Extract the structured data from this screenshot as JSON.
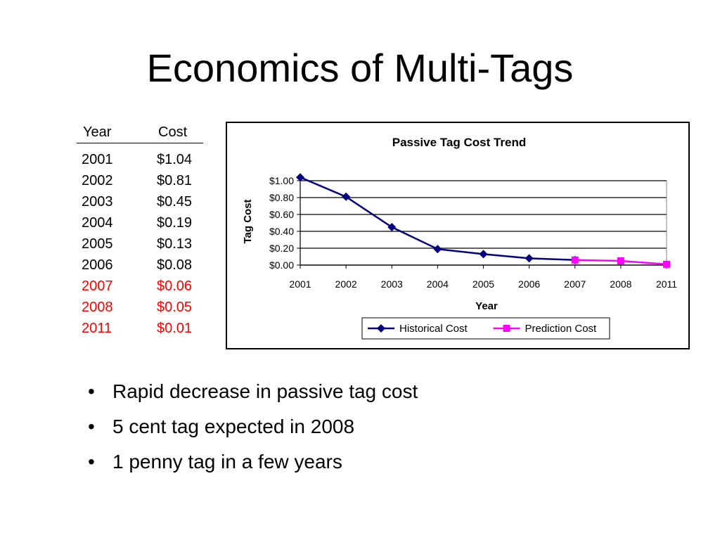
{
  "slide": {
    "title": "Economics of Multi-Tags",
    "bullets": [
      "Rapid decrease in passive tag cost",
      "5 cent tag expected in 2008",
      "1 penny tag in a few years"
    ],
    "bullet_symbol": "•"
  },
  "table": {
    "headers": [
      "Year",
      "Cost"
    ],
    "rows": [
      {
        "year": "2001",
        "cost": "$1.04",
        "color": "#000000"
      },
      {
        "year": "2002",
        "cost": "$0.81",
        "color": "#000000"
      },
      {
        "year": "2003",
        "cost": "$0.45",
        "color": "#000000"
      },
      {
        "year": "2004",
        "cost": "$0.19",
        "color": "#000000"
      },
      {
        "year": "2005",
        "cost": "$0.13",
        "color": "#000000"
      },
      {
        "year": "2006",
        "cost": "$0.08",
        "color": "#000000"
      },
      {
        "year": "2007",
        "cost": "$0.06",
        "color": "#ff0000"
      },
      {
        "year": "2008",
        "cost": "$0.05",
        "color": "#ff0000"
      },
      {
        "year": "2011",
        "cost": "$0.01",
        "color": "#ff0000"
      }
    ]
  },
  "chart_data": {
    "type": "line",
    "title": "Passive Tag Cost Trend",
    "xlabel": "Year",
    "ylabel": "Tag Cost",
    "categories": [
      "2001",
      "2002",
      "2003",
      "2004",
      "2005",
      "2006",
      "2007",
      "2008",
      "2011"
    ],
    "ylim": [
      0,
      1.0
    ],
    "yticks": [
      0,
      0.2,
      0.4,
      0.6,
      0.8,
      1.0
    ],
    "ytick_labels": [
      "$0.00",
      "$0.20",
      "$0.40",
      "$0.60",
      "$0.80",
      "$1.00"
    ],
    "grid": true,
    "legend_position": "bottom",
    "series": [
      {
        "name": "Historical Cost",
        "color": "#000080",
        "marker": "diamond",
        "points": [
          {
            "x": "2001",
            "y": 1.04
          },
          {
            "x": "2002",
            "y": 0.81
          },
          {
            "x": "2003",
            "y": 0.45
          },
          {
            "x": "2004",
            "y": 0.19
          },
          {
            "x": "2005",
            "y": 0.13
          },
          {
            "x": "2006",
            "y": 0.08
          },
          {
            "x": "2007",
            "y": 0.06
          }
        ]
      },
      {
        "name": "Prediction Cost",
        "color": "#ff00ff",
        "marker": "square",
        "points": [
          {
            "x": "2007",
            "y": 0.06
          },
          {
            "x": "2008",
            "y": 0.05
          },
          {
            "x": "2011",
            "y": 0.01
          }
        ]
      }
    ]
  }
}
